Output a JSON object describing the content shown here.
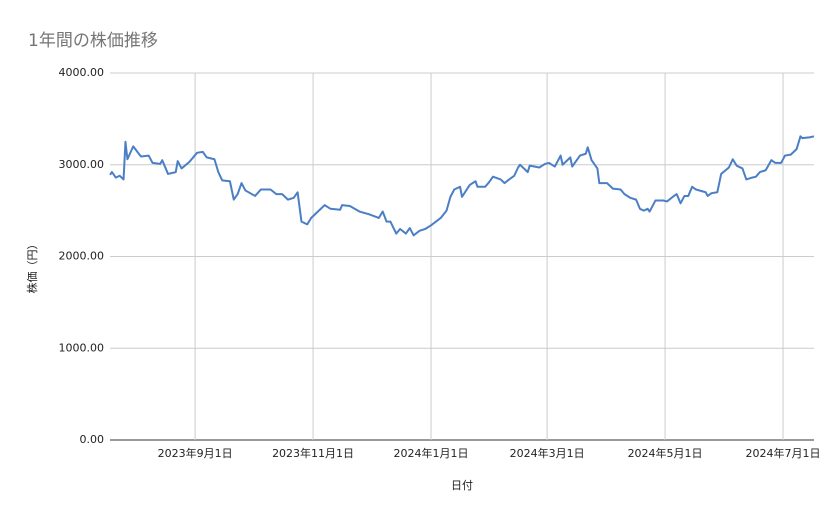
{
  "chart_data": {
    "type": "line",
    "title": "1年間の株価推移",
    "x_label": "日付",
    "y_label": "株価（円）",
    "color": "#4a7fc6",
    "grid": true,
    "xlim": [
      "2023-07-19",
      "2024-07-17"
    ],
    "xticks": [
      {
        "value": "2023-09-01",
        "label": "2023年9月1日"
      },
      {
        "value": "2023-11-01",
        "label": "2023年11月1日"
      },
      {
        "value": "2024-01-01",
        "label": "2024年1月1日"
      },
      {
        "value": "2024-03-01",
        "label": "2024年3月1日"
      },
      {
        "value": "2024-05-01",
        "label": "2024年5月1日"
      },
      {
        "value": "2024-07-01",
        "label": "2024年7月1日"
      }
    ],
    "ylim": [
      0,
      4000
    ],
    "yticks": [
      {
        "value": 0,
        "label": "0.00"
      },
      {
        "value": 1000,
        "label": "1000.00"
      },
      {
        "value": 2000,
        "label": "2000.00"
      },
      {
        "value": 3000,
        "label": "3000.00"
      },
      {
        "value": 4000,
        "label": "4000.00"
      }
    ],
    "x": [
      "2023-07-19",
      "2023-07-20",
      "2023-07-22",
      "2023-07-24",
      "2023-07-26",
      "2023-07-27",
      "2023-07-28",
      "2023-07-31",
      "2023-08-04",
      "2023-08-08",
      "2023-08-10",
      "2023-08-14",
      "2023-08-15",
      "2023-08-18",
      "2023-08-22",
      "2023-08-23",
      "2023-08-25",
      "2023-08-29",
      "2023-09-02",
      "2023-09-05",
      "2023-09-07",
      "2023-09-11",
      "2023-09-13",
      "2023-09-15",
      "2023-09-19",
      "2023-09-21",
      "2023-09-23",
      "2023-09-25",
      "2023-09-27",
      "2023-10-02",
      "2023-10-05",
      "2023-10-10",
      "2023-10-13",
      "2023-10-16",
      "2023-10-19",
      "2023-10-22",
      "2023-10-24",
      "2023-10-26",
      "2023-10-29",
      "2023-10-31",
      "2023-11-04",
      "2023-11-07",
      "2023-11-10",
      "2023-11-15",
      "2023-11-16",
      "2023-11-20",
      "2023-11-25",
      "2023-11-30",
      "2023-12-05",
      "2023-12-07",
      "2023-12-09",
      "2023-12-11",
      "2023-12-14",
      "2023-12-16",
      "2023-12-19",
      "2023-12-21",
      "2023-12-23",
      "2023-12-26",
      "2023-12-29",
      "2024-01-01",
      "2024-01-06",
      "2024-01-09",
      "2024-01-11",
      "2024-01-13",
      "2024-01-16",
      "2024-01-17",
      "2024-01-21",
      "2024-01-24",
      "2024-01-25",
      "2024-01-29",
      "2024-01-31",
      "2024-02-02",
      "2024-02-06",
      "2024-02-08",
      "2024-02-11",
      "2024-02-13",
      "2024-02-15",
      "2024-02-16",
      "2024-02-20",
      "2024-02-21",
      "2024-02-26",
      "2024-02-29",
      "2024-03-02",
      "2024-03-05",
      "2024-03-08",
      "2024-03-09",
      "2024-03-13",
      "2024-03-14",
      "2024-03-18",
      "2024-03-21",
      "2024-03-22",
      "2024-03-24",
      "2024-03-27",
      "2024-03-28",
      "2024-04-01",
      "2024-04-04",
      "2024-04-08",
      "2024-04-10",
      "2024-04-13",
      "2024-04-16",
      "2024-04-18",
      "2024-04-20",
      "2024-04-22",
      "2024-04-23",
      "2024-04-26",
      "2024-04-30",
      "2024-05-02",
      "2024-05-05",
      "2024-05-07",
      "2024-05-09",
      "2024-05-11",
      "2024-05-13",
      "2024-05-15",
      "2024-05-17",
      "2024-05-22",
      "2024-05-23",
      "2024-05-25",
      "2024-05-28",
      "2024-05-30",
      "2024-06-03",
      "2024-06-05",
      "2024-06-07",
      "2024-06-10",
      "2024-06-12",
      "2024-06-15",
      "2024-06-17",
      "2024-06-19",
      "2024-06-22",
      "2024-06-25",
      "2024-06-27",
      "2024-06-30",
      "2024-07-02",
      "2024-07-05",
      "2024-07-08",
      "2024-07-10",
      "2024-07-11",
      "2024-07-15",
      "2024-07-17"
    ],
    "values": [
      2890,
      2920,
      2860,
      2880,
      2840,
      3250,
      3060,
      3200,
      3090,
      3100,
      3020,
      3010,
      3050,
      2900,
      2920,
      3040,
      2960,
      3030,
      3130,
      3140,
      3080,
      3060,
      2920,
      2830,
      2820,
      2620,
      2680,
      2800,
      2720,
      2660,
      2730,
      2730,
      2680,
      2680,
      2620,
      2640,
      2700,
      2380,
      2350,
      2420,
      2500,
      2560,
      2520,
      2510,
      2560,
      2550,
      2490,
      2460,
      2420,
      2490,
      2380,
      2380,
      2250,
      2300,
      2250,
      2310,
      2230,
      2280,
      2300,
      2340,
      2420,
      2500,
      2650,
      2730,
      2760,
      2650,
      2780,
      2820,
      2760,
      2760,
      2810,
      2870,
      2840,
      2800,
      2850,
      2880,
      2970,
      3000,
      2920,
      2990,
      2970,
      3010,
      3020,
      2980,
      3100,
      3000,
      3080,
      2980,
      3100,
      3120,
      3190,
      3050,
      2960,
      2800,
      2800,
      2740,
      2730,
      2680,
      2640,
      2620,
      2520,
      2500,
      2520,
      2490,
      2610,
      2610,
      2600,
      2650,
      2680,
      2580,
      2660,
      2660,
      2760,
      2730,
      2700,
      2660,
      2690,
      2700,
      2900,
      2970,
      3060,
      2990,
      2960,
      2840,
      2860,
      2870,
      2920,
      2940,
      3050,
      3020,
      3020,
      3100,
      3110,
      3170,
      3310,
      3290,
      3300,
      3310
    ]
  }
}
